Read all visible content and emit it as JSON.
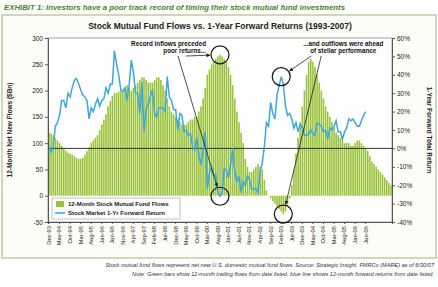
{
  "chart_data": {
    "type": "bar",
    "subtitle": "EXHIBIT 1: Investors have a poor track record of timing their stock mutual fund investments",
    "title": "Stock Mutual Fund Flows vs. 1-Year Forward Returns (1993-2007)",
    "ylabel": "12-Month Net New Flows ($Bn)",
    "y2label": "1-Year Forward Total Return",
    "annotations": [
      [
        "Record inflows preceded",
        "poor returns..."
      ],
      [
        "...and outflows were ahead",
        "of stellar performance"
      ]
    ],
    "notes": [
      "Stock mutual fund flows represent net new U.S. domestic mutual fund flows. Source: Strategic Insight, FMRCo (MARE) as of 6/30/07",
      "Note: Green bars show 12-month trailing flows from date listed, blue line shows 12-month forward returns from date listed."
    ],
    "categories": [
      "Dec-93",
      null,
      null,
      null,
      null,
      "May-94",
      null,
      null,
      null,
      null,
      "Oct-94",
      null,
      null,
      null,
      null,
      "Mar-95",
      null,
      null,
      null,
      null,
      "Aug-95",
      null,
      null,
      null,
      null,
      "Jan-96",
      null,
      null,
      null,
      null,
      "Jun-96",
      null,
      null,
      null,
      null,
      "Nov-96",
      null,
      null,
      null,
      null,
      "Apr-97",
      null,
      null,
      null,
      null,
      "Sep-97",
      null,
      null,
      null,
      null,
      "Feb-98",
      null,
      null,
      null,
      null,
      "Jul-98",
      null,
      null,
      null,
      null,
      "Dec-98",
      null,
      null,
      null,
      null,
      "May-99",
      null,
      null,
      null,
      null,
      "Oct-99",
      null,
      null,
      null,
      null,
      "Mar-00",
      null,
      null,
      null,
      null,
      "Aug-00",
      null,
      null,
      null,
      null,
      "Jan-01",
      null,
      null,
      null,
      null,
      "Jun-01",
      null,
      null,
      null,
      null,
      "Nov-01",
      null,
      null,
      null,
      null,
      "Apr-02",
      null,
      null,
      null,
      null,
      "Sep-02",
      null,
      null,
      null,
      null,
      "Feb-03",
      null,
      null,
      null,
      null,
      "Jul-03",
      null,
      null,
      null,
      null,
      "Dec-03",
      null,
      null,
      null,
      null,
      "May-04",
      null,
      null,
      null,
      null,
      "Oct-04",
      null,
      null,
      null,
      null,
      "Mar-05",
      null,
      null,
      null,
      null,
      "Aug-05",
      null,
      null,
      null,
      null,
      "Jan-06",
      null,
      null,
      null,
      null,
      "Jun-06",
      null,
      null,
      null,
      null,
      null,
      null,
      null,
      null,
      null,
      null,
      null,
      null
    ],
    "series": [
      {
        "name": "12-Month Stock Mutual Fund Flows",
        "type": "bar",
        "color": "#99c23a",
        "values": [
          120,
          118,
          115,
          110,
          105,
          100,
          95,
          90,
          85,
          82,
          80,
          78,
          75,
          72,
          70,
          70,
          72,
          78,
          85,
          92,
          100,
          105,
          110,
          115,
          125,
          135,
          145,
          155,
          170,
          180,
          190,
          195,
          195,
          198,
          200,
          200,
          205,
          210,
          205,
          200,
          205,
          210,
          215,
          220,
          225,
          225,
          220,
          215,
          215,
          215,
          220,
          225,
          225,
          220,
          210,
          200,
          185,
          170,
          160,
          155,
          150,
          145,
          140,
          135,
          135,
          135,
          140,
          145,
          145,
          150,
          150,
          160,
          170,
          185,
          205,
          230,
          240,
          250,
          255,
          260,
          265,
          268,
          265,
          260,
          255,
          245,
          230,
          210,
          185,
          160,
          140,
          120,
          100,
          70,
          55,
          45,
          45,
          50,
          55,
          60,
          55,
          50,
          30,
          10,
          0,
          -5,
          -10,
          -15,
          -20,
          -25,
          -30,
          -35,
          -30,
          -20,
          -5,
          20,
          50,
          80,
          110,
          140,
          170,
          200,
          230,
          255,
          260,
          255,
          245,
          230,
          215,
          200,
          185,
          170,
          160,
          150,
          140,
          130,
          120,
          115,
          110,
          105,
          100,
          100,
          100,
          95,
          95,
          100,
          105,
          105,
          100,
          95,
          90,
          85,
          75,
          65,
          60,
          55,
          50,
          45,
          40,
          35,
          30,
          25,
          20
        ]
      },
      {
        "name": "Stock Market 1-Yr Forward Return",
        "type": "line",
        "color": "#3ea8dc",
        "axis": "y2",
        "values": [
          1,
          -2,
          1,
          12,
          14,
          18,
          26,
          26,
          22,
          30,
          28,
          33,
          37,
          38,
          35,
          32,
          29,
          28,
          26,
          16,
          22,
          20,
          24,
          27,
          23,
          26,
          27,
          33,
          30,
          35,
          35,
          53,
          46,
          40,
          32,
          31,
          33,
          26,
          35,
          48,
          41,
          30,
          30,
          19,
          36,
          9,
          21,
          24,
          28,
          32,
          19,
          17,
          22,
          22,
          22,
          20,
          39,
          28,
          26,
          21,
          21,
          10,
          19,
          18,
          9,
          10,
          7,
          8,
          1,
          -1,
          6,
          -4,
          -9,
          -1,
          9,
          -22,
          -13,
          -10,
          -15,
          -14,
          -24,
          -26,
          -24,
          -11,
          -12,
          -16,
          -9,
          0,
          -13,
          -18,
          -15,
          -24,
          -18,
          -20,
          -15,
          -17,
          -22,
          -22,
          -22,
          -24,
          -13,
          -8,
          1,
          14,
          12,
          25,
          19,
          16,
          29,
          34,
          39,
          35,
          23,
          18,
          19,
          16,
          11,
          14,
          9,
          13,
          11,
          7,
          7,
          8,
          10,
          8,
          7,
          14,
          13,
          12,
          9,
          10,
          5,
          11,
          10,
          12,
          15,
          9,
          9,
          5,
          9,
          11,
          16,
          15,
          16,
          14,
          12,
          12,
          15,
          18,
          20,
          null,
          null,
          null,
          null,
          null,
          null,
          null,
          null,
          null,
          null,
          null,
          null
        ]
      }
    ],
    "ylim": [
      -50,
      300
    ],
    "yticks": [
      -50,
      0,
      50,
      100,
      150,
      200,
      250,
      300
    ],
    "y2lim": [
      -40,
      60
    ],
    "y2ticks": [
      {
        "value": -40,
        "label": "-40%"
      },
      {
        "value": -30,
        "label": "-30%"
      },
      {
        "value": -20,
        "label": "-20%"
      },
      {
        "value": -10,
        "label": "-10%"
      },
      {
        "value": 0,
        "label": "0%"
      },
      {
        "value": 10,
        "label": "10%"
      },
      {
        "value": 20,
        "label": "20%"
      },
      {
        "value": 30,
        "label": "30%"
      },
      {
        "value": 40,
        "label": "40%"
      },
      {
        "value": 50,
        "label": "50%"
      },
      {
        "value": 60,
        "label": "60%"
      }
    ],
    "grid": false,
    "legend": "bottom-left"
  }
}
